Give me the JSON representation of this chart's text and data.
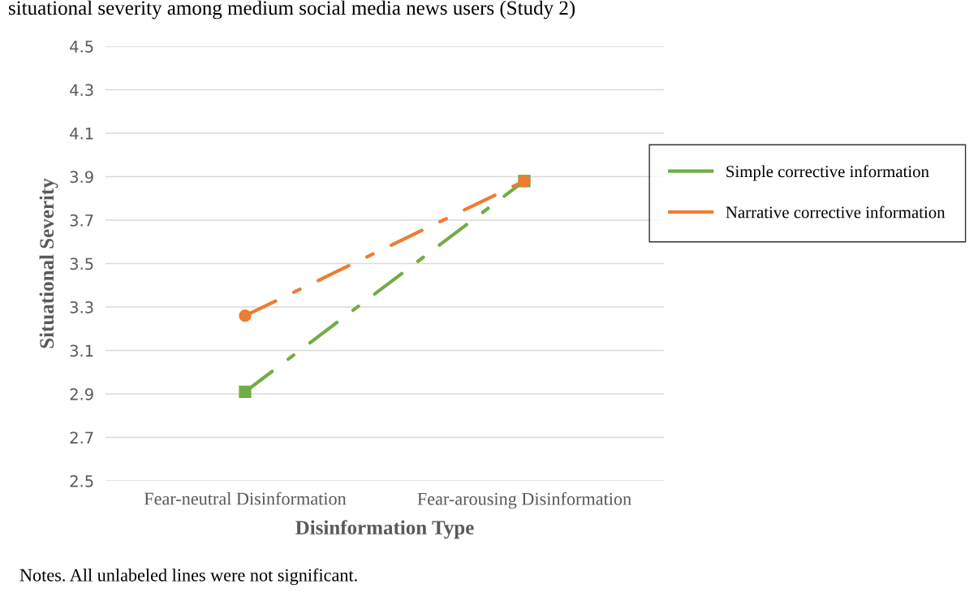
{
  "chart_data": {
    "type": "line",
    "title": "situational severity among medium social media news users (Study 2)",
    "xlabel": "Disinformation Type",
    "ylabel": "Situational Severity",
    "categories": [
      "Fear-neutral Disinformation",
      "Fear-arousing Disinformation"
    ],
    "series": [
      {
        "name": "Simple corrective information",
        "color": "#70ad47",
        "values": [
          2.91,
          3.88
        ],
        "marker": "square",
        "line_style": "dashdot"
      },
      {
        "name": "Narrative corrective information",
        "color": "#ed7d31",
        "values": [
          3.26,
          3.88
        ],
        "marker": "circle",
        "line_style": "dashdot"
      }
    ],
    "ylim": [
      2.5,
      4.5
    ],
    "yticks": [
      2.5,
      2.7,
      2.9,
      3.1,
      3.3,
      3.5,
      3.7,
      3.9,
      4.1,
      4.3,
      4.5
    ],
    "grid": "y",
    "legend": "right",
    "annotations": [
      "Notes. All unlabeled lines were not significant."
    ]
  }
}
